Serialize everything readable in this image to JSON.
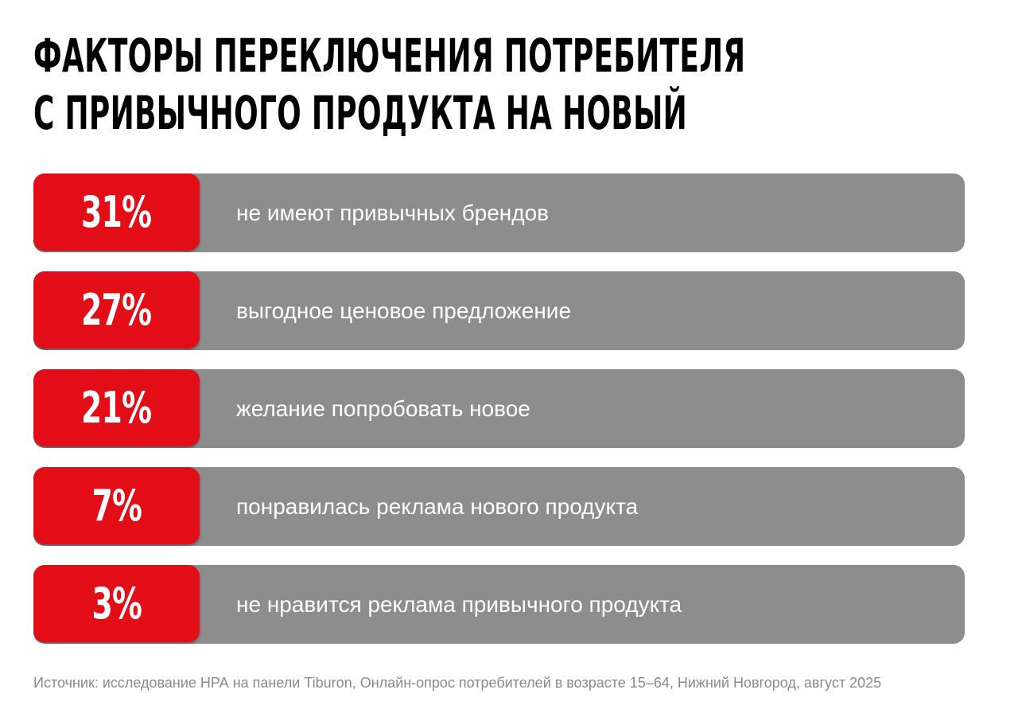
{
  "title_lines": [
    "ФАКТОРЫ ПЕРЕКЛЮЧЕНИЯ ПОТРЕБИТЕЛЯ",
    "С ПРИВЫЧНОГО ПРОДУКТА НА НОВЫЙ"
  ],
  "colors": {
    "accent": "#e30d17",
    "bar": "#8d8d8d",
    "text_on_bar": "#ffffff",
    "source_text": "#8a8a8a"
  },
  "chart_data": {
    "type": "bar",
    "title": "ФАКТОРЫ ПЕРЕКЛЮЧЕНИЯ ПОТРЕБИТЕЛЯ С ПРИВЫЧНОГО ПРОДУКТА НА НОВЫЙ",
    "unit": "%",
    "categories": [
      "не имеют привычных брендов",
      "выгодное ценовое предложение",
      "желание попробовать новое",
      "понравилась реклама нового продукта",
      "не нравится реклама привычного продукта"
    ],
    "values": [
      31,
      27,
      21,
      7,
      3
    ],
    "value_labels": [
      "31%",
      "27%",
      "21%",
      "7%",
      "3%"
    ]
  },
  "source": "Источник: исследование НРА на панели Tiburon, Онлайн-опрос потребителей в возрасте 15–64, Нижний Новгород, август 2025"
}
